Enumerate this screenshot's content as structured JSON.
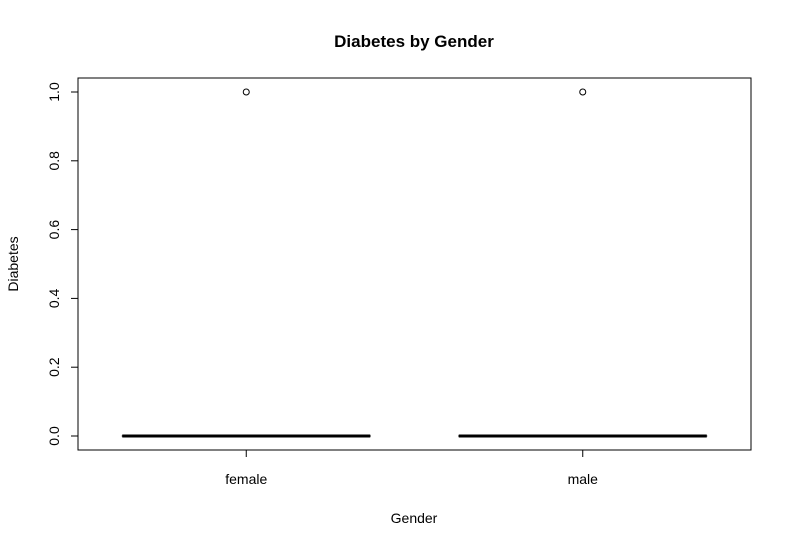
{
  "chart_data": {
    "type": "box",
    "title": "Diabetes by Gender",
    "xlabel": "Gender",
    "ylabel": "Diabetes",
    "categories": [
      "female",
      "male"
    ],
    "ylim": [
      0,
      1
    ],
    "y_ticks": [
      0,
      0.2,
      0.4,
      0.6,
      0.8,
      1
    ],
    "y_tick_labels": [
      "0.0",
      "0.2",
      "0.4",
      "0.6",
      "0.8",
      "1.0"
    ],
    "boxes": [
      {
        "category": "female",
        "min": 0,
        "q1": 0,
        "median": 0,
        "q3": 0,
        "max": 0,
        "outliers": [
          1
        ]
      },
      {
        "category": "male",
        "min": 0,
        "q1": 0,
        "median": 0,
        "q3": 0,
        "max": 0,
        "outliers": [
          1
        ]
      }
    ],
    "grid": false,
    "legend": "none"
  }
}
